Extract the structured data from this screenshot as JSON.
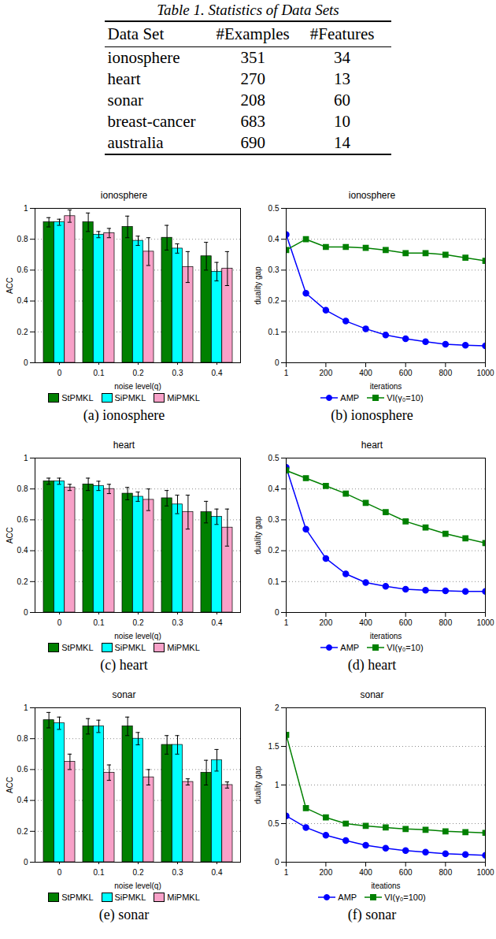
{
  "table": {
    "title": "Table 1. Statistics of Data Sets",
    "columns": [
      "Data Set",
      "#Examples",
      "#Features"
    ],
    "rows": [
      [
        "ionosphere",
        351,
        34
      ],
      [
        "heart",
        270,
        13
      ],
      [
        "sonar",
        208,
        60
      ],
      [
        "breast-cancer",
        683,
        10
      ],
      [
        "australia",
        690,
        14
      ]
    ]
  },
  "chart_data": [
    {
      "type": "bar",
      "title": "ionosphere",
      "caption": "(a) ionosphere",
      "x_label": "noise level(q)",
      "y_label": "ACC",
      "categories": [
        "0",
        "0.1",
        "0.2",
        "0.3",
        "0.4"
      ],
      "ylim": [
        0,
        1
      ],
      "yticks": [
        0,
        0.2,
        0.4,
        0.6,
        0.8,
        1
      ],
      "grid": true,
      "legend": "bottom",
      "series": [
        {
          "name": "StPMKL",
          "color": "#008000",
          "values": [
            0.91,
            0.91,
            0.88,
            0.81,
            0.69
          ],
          "errors": [
            0.03,
            0.06,
            0.07,
            0.08,
            0.09
          ]
        },
        {
          "name": "SiPMKL",
          "color": "#00ffff",
          "values": [
            0.91,
            0.83,
            0.79,
            0.74,
            0.59
          ],
          "errors": [
            0.02,
            0.02,
            0.03,
            0.03,
            0.06
          ]
        },
        {
          "name": "MiPMKL",
          "color": "#f7a1c8",
          "values": [
            0.95,
            0.84,
            0.72,
            0.62,
            0.61
          ],
          "errors": [
            0.04,
            0.03,
            0.09,
            0.1,
            0.11
          ]
        }
      ]
    },
    {
      "type": "line",
      "title": "ionosphere",
      "caption": "(b) ionosphere",
      "x_label": "iterations",
      "y_label": "duality gap",
      "x": [
        1,
        100,
        200,
        300,
        400,
        500,
        600,
        700,
        800,
        900,
        1000
      ],
      "xlim": [
        1,
        1000
      ],
      "xticks": [
        1,
        200,
        400,
        600,
        800,
        1000
      ],
      "ylim": [
        0,
        0.5
      ],
      "yticks": [
        0,
        0.1,
        0.2,
        0.3,
        0.4,
        0.5
      ],
      "grid": true,
      "legend": "bottom",
      "series": [
        {
          "name": "AMP",
          "color": "#0000ff",
          "marker": "circle",
          "values": [
            0.415,
            0.225,
            0.17,
            0.135,
            0.11,
            0.09,
            0.078,
            0.068,
            0.06,
            0.057,
            0.055
          ]
        },
        {
          "name": "VI(γ₀=10)",
          "color": "#008000",
          "marker": "square",
          "values": [
            0.365,
            0.4,
            0.375,
            0.375,
            0.372,
            0.365,
            0.355,
            0.355,
            0.35,
            0.34,
            0.33
          ]
        }
      ]
    },
    {
      "type": "bar",
      "title": "heart",
      "caption": "(c) heart",
      "x_label": "noise level(q)",
      "y_label": "ACC",
      "categories": [
        "0",
        "0.1",
        "0.2",
        "0.3",
        "0.4"
      ],
      "ylim": [
        0,
        1
      ],
      "yticks": [
        0,
        0.2,
        0.4,
        0.6,
        0.8,
        1
      ],
      "grid": true,
      "legend": "bottom",
      "series": [
        {
          "name": "StPMKL",
          "color": "#008000",
          "values": [
            0.85,
            0.83,
            0.77,
            0.74,
            0.65
          ],
          "errors": [
            0.02,
            0.04,
            0.04,
            0.05,
            0.07
          ]
        },
        {
          "name": "SiPMKL",
          "color": "#00ffff",
          "values": [
            0.85,
            0.82,
            0.75,
            0.7,
            0.62
          ],
          "errors": [
            0.02,
            0.03,
            0.03,
            0.06,
            0.05
          ]
        },
        {
          "name": "MiPMKL",
          "color": "#f7a1c8",
          "values": [
            0.81,
            0.8,
            0.73,
            0.65,
            0.55
          ],
          "errors": [
            0.02,
            0.03,
            0.07,
            0.11,
            0.12
          ]
        }
      ]
    },
    {
      "type": "line",
      "title": "heart",
      "caption": "(d) heart",
      "x_label": "iterations",
      "y_label": "duality gap",
      "x": [
        1,
        100,
        200,
        300,
        400,
        500,
        600,
        700,
        800,
        900,
        1000
      ],
      "xlim": [
        1,
        1000
      ],
      "xticks": [
        1,
        200,
        400,
        600,
        800,
        1000
      ],
      "ylim": [
        0,
        0.5
      ],
      "yticks": [
        0,
        0.1,
        0.2,
        0.3,
        0.4,
        0.5
      ],
      "grid": true,
      "legend": "bottom",
      "series": [
        {
          "name": "AMP",
          "color": "#0000ff",
          "marker": "circle",
          "values": [
            0.47,
            0.27,
            0.175,
            0.125,
            0.097,
            0.085,
            0.075,
            0.072,
            0.07,
            0.068,
            0.068
          ]
        },
        {
          "name": "VI(γ₀=10)",
          "color": "#008000",
          "marker": "square",
          "values": [
            0.46,
            0.435,
            0.41,
            0.385,
            0.355,
            0.325,
            0.295,
            0.275,
            0.255,
            0.24,
            0.225
          ]
        }
      ]
    },
    {
      "type": "bar",
      "title": "sonar",
      "caption": "(e) sonar",
      "x_label": "noise level(q)",
      "y_label": "ACC",
      "categories": [
        "0",
        "0.1",
        "0.2",
        "0.3",
        "0.4"
      ],
      "ylim": [
        0,
        1
      ],
      "yticks": [
        0,
        0.2,
        0.4,
        0.6,
        0.8,
        1
      ],
      "grid": true,
      "legend": "bottom",
      "series": [
        {
          "name": "StPMKL",
          "color": "#008000",
          "values": [
            0.92,
            0.88,
            0.88,
            0.76,
            0.58
          ],
          "errors": [
            0.05,
            0.05,
            0.06,
            0.06,
            0.08
          ]
        },
        {
          "name": "SiPMKL",
          "color": "#00ffff",
          "values": [
            0.9,
            0.88,
            0.8,
            0.76,
            0.66
          ],
          "errors": [
            0.04,
            0.04,
            0.04,
            0.06,
            0.07
          ]
        },
        {
          "name": "MiPMKL",
          "color": "#f7a1c8",
          "values": [
            0.65,
            0.58,
            0.55,
            0.52,
            0.5
          ],
          "errors": [
            0.05,
            0.05,
            0.05,
            0.02,
            0.02
          ]
        }
      ]
    },
    {
      "type": "line",
      "title": "sonar",
      "caption": "(f) sonar",
      "x_label": "iteations",
      "y_label": "duality gap",
      "x": [
        1,
        100,
        200,
        300,
        400,
        500,
        600,
        700,
        800,
        900,
        1000
      ],
      "xlim": [
        1,
        1000
      ],
      "xticks": [
        1,
        200,
        400,
        600,
        800,
        1000
      ],
      "ylim": [
        0,
        2
      ],
      "yticks": [
        0,
        0.5,
        1,
        1.5,
        2
      ],
      "grid": true,
      "legend": "bottom",
      "series": [
        {
          "name": "AMP",
          "color": "#0000ff",
          "marker": "circle",
          "values": [
            0.6,
            0.45,
            0.35,
            0.28,
            0.22,
            0.18,
            0.15,
            0.13,
            0.11,
            0.1,
            0.09
          ]
        },
        {
          "name": "VI(γ₀=100)",
          "color": "#008000",
          "marker": "square",
          "values": [
            1.65,
            0.7,
            0.58,
            0.5,
            0.47,
            0.45,
            0.43,
            0.42,
            0.4,
            0.39,
            0.38
          ]
        }
      ]
    }
  ]
}
